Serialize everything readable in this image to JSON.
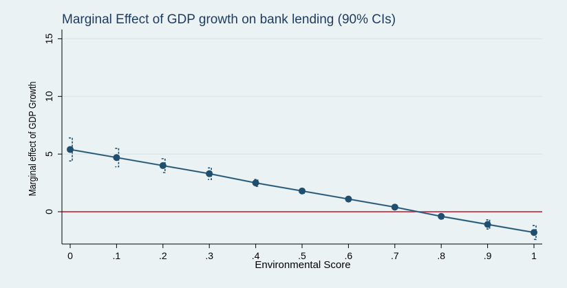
{
  "chart_data": {
    "type": "line",
    "title": "Marginal Effect of GDP growth on bank lending (90% CIs)",
    "xlabel": "Environmental Score",
    "ylabel": "Marginal effect of GDP Growth",
    "xlim": [
      0,
      1
    ],
    "ylim": [
      -2.8,
      15.8
    ],
    "x_ticks": [
      0,
      0.1,
      0.2,
      0.3,
      0.4,
      0.5,
      0.6,
      0.7,
      0.8,
      0.9,
      1
    ],
    "x_tick_labels": [
      "0",
      ".1",
      ".2",
      ".3",
      ".4",
      ".5",
      ".6",
      ".7",
      ".8",
      ".9",
      "1"
    ],
    "y_ticks": [
      0,
      5,
      10,
      15
    ],
    "y_tick_labels": [
      "0",
      "5",
      "10",
      "15"
    ],
    "grid": true,
    "reference_line": {
      "y": 0,
      "color": "#c0243a"
    },
    "series": [
      {
        "x": [
          0,
          0.1,
          0.2,
          0.3,
          0.4,
          0.5,
          0.6,
          0.7,
          0.8,
          0.9,
          1
        ],
        "values": [
          5.4,
          4.7,
          4.0,
          3.3,
          2.5,
          1.8,
          1.1,
          0.4,
          -0.4,
          -1.1,
          -1.8
        ],
        "ci_lower": [
          4.4,
          3.9,
          3.4,
          2.8,
          2.2,
          1.6,
          1.0,
          0.3,
          -0.6,
          -1.5,
          -2.4
        ],
        "ci_upper": [
          6.4,
          5.5,
          4.6,
          3.8,
          2.8,
          2.0,
          1.2,
          0.5,
          -0.2,
          -0.7,
          -1.2
        ],
        "color": "#1f4e6e"
      }
    ]
  }
}
